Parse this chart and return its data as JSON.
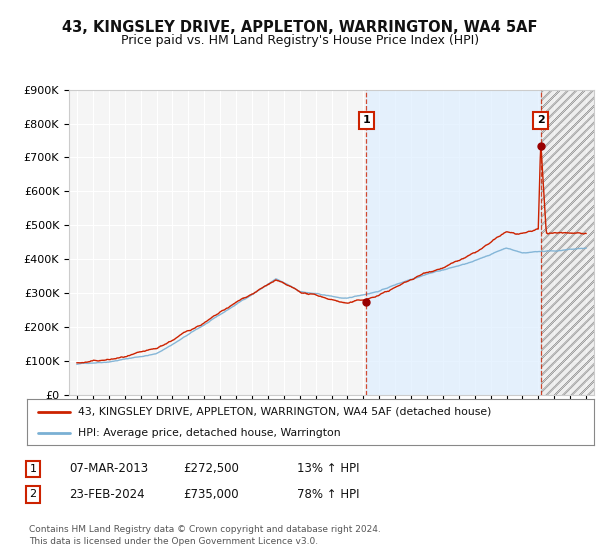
{
  "title": "43, KINGSLEY DRIVE, APPLETON, WARRINGTON, WA4 5AF",
  "subtitle": "Price paid vs. HM Land Registry's House Price Index (HPI)",
  "title_fontsize": 10.5,
  "subtitle_fontsize": 9,
  "xlim": [
    1994.5,
    2027.5
  ],
  "ylim": [
    0,
    900000
  ],
  "yticks": [
    0,
    100000,
    200000,
    300000,
    400000,
    500000,
    600000,
    700000,
    800000,
    900000
  ],
  "ytick_labels": [
    "£0",
    "£100K",
    "£200K",
    "£300K",
    "£400K",
    "£500K",
    "£600K",
    "£700K",
    "£800K",
    "£900K"
  ],
  "xticks": [
    1995,
    1996,
    1997,
    1998,
    1999,
    2000,
    2001,
    2002,
    2003,
    2004,
    2005,
    2006,
    2007,
    2008,
    2009,
    2010,
    2011,
    2012,
    2013,
    2014,
    2015,
    2016,
    2017,
    2018,
    2019,
    2020,
    2021,
    2022,
    2023,
    2024,
    2025,
    2026,
    2027
  ],
  "hpi_color": "#7ab0d4",
  "price_color": "#cc2200",
  "annotation_box_color": "#cc2200",
  "sale1_x": 2013.18,
  "sale1_y": 272500,
  "sale1_label": "1",
  "sale1_date": "07-MAR-2013",
  "sale1_price": "£272,500",
  "sale1_hpi": "13% ↑ HPI",
  "sale2_x": 2024.15,
  "sale2_y": 735000,
  "sale2_label": "2",
  "sale2_date": "23-FEB-2024",
  "sale2_price": "£735,000",
  "sale2_hpi": "78% ↑ HPI",
  "legend_line1": "43, KINGSLEY DRIVE, APPLETON, WARRINGTON, WA4 5AF (detached house)",
  "legend_line2": "HPI: Average price, detached house, Warrington",
  "footnote": "Contains HM Land Registry data © Crown copyright and database right 2024.\nThis data is licensed under the Open Government Licence v3.0.",
  "bg_color": "#ffffff",
  "plot_bg_color": "#f5f5f5",
  "highlight_bg_color": "#ddeeff",
  "grid_color": "#ffffff"
}
